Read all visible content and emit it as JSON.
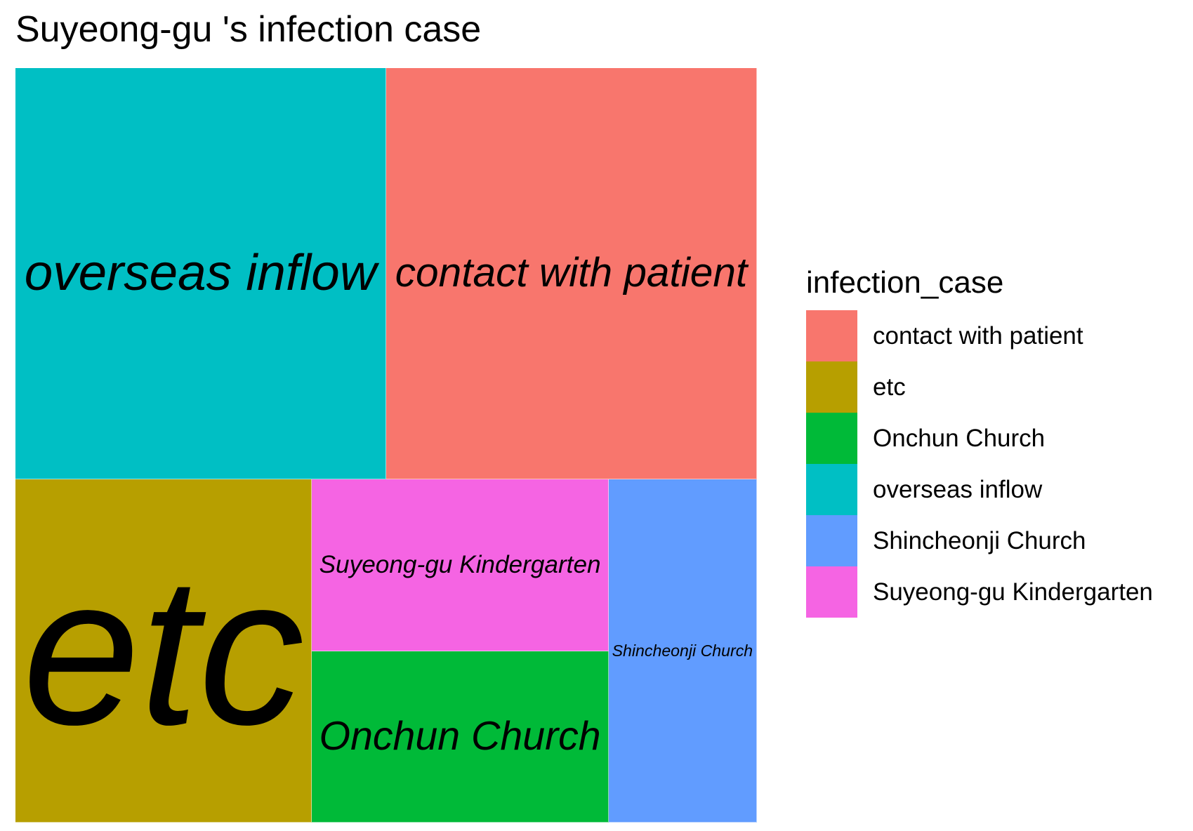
{
  "chart_data": {
    "type": "treemap",
    "title": "Suyeong-gu 's infection case",
    "legend_title": "infection_case",
    "legend_position": "right",
    "legend": [
      {
        "label": "contact with patient",
        "color": "#F8766D"
      },
      {
        "label": "etc",
        "color": "#B79F00"
      },
      {
        "label": "Onchun Church",
        "color": "#00BA38"
      },
      {
        "label": "overseas inflow",
        "color": "#00BFC4"
      },
      {
        "label": "Shincheonji Church",
        "color": "#619CFF"
      },
      {
        "label": "Suyeong-gu Kindergarten",
        "color": "#F564E3"
      }
    ],
    "tiles": [
      {
        "label": "overseas inflow",
        "value": 6,
        "color": "#00BFC4"
      },
      {
        "label": "contact with patient",
        "value": 6,
        "color": "#F8766D"
      },
      {
        "label": "etc",
        "value": 4,
        "color": "#B79F00"
      },
      {
        "label": "Suyeong-gu Kindergarten",
        "value": 2,
        "color": "#F564E3"
      },
      {
        "label": "Onchun Church",
        "value": 2,
        "color": "#00BA38"
      },
      {
        "label": "Shincheonji Church",
        "value": 2,
        "color": "#619CFF"
      }
    ]
  }
}
